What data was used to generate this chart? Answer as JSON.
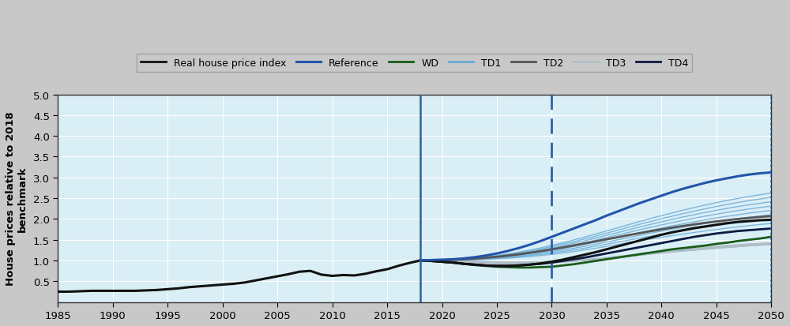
{
  "ylabel": "House prices relative to 2018\nbenchmark",
  "xlim": [
    1985,
    2050
  ],
  "ylim": [
    0,
    5
  ],
  "yticks": [
    0.5,
    1.0,
    1.5,
    2.0,
    2.5,
    3.0,
    3.5,
    4.0,
    4.5,
    5.0
  ],
  "xticks": [
    1985,
    1990,
    1995,
    2000,
    2005,
    2010,
    2015,
    2020,
    2025,
    2030,
    2035,
    2040,
    2045,
    2050
  ],
  "plot_bg_color": "#daeef5",
  "fig_bg_color": "#c8c8c8",
  "vline_solid_x": 2018,
  "vline_dashed_x": 2030,
  "vline_dotted_x": 2050,
  "vline_color": "#3060a0",
  "colors": {
    "real_house": "#111111",
    "reference": "#2255aa",
    "WD": "#1a5c1a",
    "TD1": "#6aacd8",
    "TD2": "#555555",
    "TD3": "#b0bec8",
    "TD4": "#0a1a40"
  },
  "legend_labels": [
    "Real house price index",
    "Reference",
    "WD",
    "TD1",
    "TD2",
    "TD3",
    "TD4"
  ],
  "historical_years": [
    1985,
    1986,
    1987,
    1988,
    1989,
    1990,
    1991,
    1992,
    1993,
    1994,
    1995,
    1996,
    1997,
    1998,
    1999,
    2000,
    2001,
    2002,
    2003,
    2004,
    2005,
    2006,
    2007,
    2008,
    2009,
    2010,
    2011,
    2012,
    2013,
    2014,
    2015,
    2016,
    2017,
    2018
  ],
  "historical_values": [
    0.25,
    0.25,
    0.26,
    0.27,
    0.27,
    0.27,
    0.27,
    0.27,
    0.28,
    0.29,
    0.31,
    0.33,
    0.36,
    0.38,
    0.4,
    0.42,
    0.44,
    0.47,
    0.52,
    0.57,
    0.62,
    0.67,
    0.73,
    0.75,
    0.66,
    0.63,
    0.65,
    0.64,
    0.68,
    0.74,
    0.79,
    0.87,
    0.94,
    1.0
  ],
  "future_years": [
    2018,
    2019,
    2020,
    2021,
    2022,
    2023,
    2024,
    2025,
    2026,
    2027,
    2028,
    2029,
    2030,
    2031,
    2032,
    2033,
    2034,
    2035,
    2036,
    2037,
    2038,
    2039,
    2040,
    2041,
    2042,
    2043,
    2044,
    2045,
    2046,
    2047,
    2048,
    2049,
    2050
  ],
  "reference_values": [
    1.0,
    1.01,
    1.02,
    1.03,
    1.05,
    1.08,
    1.12,
    1.17,
    1.23,
    1.3,
    1.38,
    1.47,
    1.57,
    1.67,
    1.77,
    1.87,
    1.97,
    2.08,
    2.18,
    2.28,
    2.38,
    2.47,
    2.56,
    2.65,
    2.73,
    2.8,
    2.87,
    2.93,
    2.98,
    3.03,
    3.07,
    3.1,
    3.12
  ],
  "real_future_values": [
    1.0,
    0.99,
    0.97,
    0.95,
    0.92,
    0.9,
    0.88,
    0.87,
    0.87,
    0.88,
    0.9,
    0.93,
    0.97,
    1.02,
    1.08,
    1.14,
    1.2,
    1.27,
    1.34,
    1.41,
    1.48,
    1.55,
    1.62,
    1.68,
    1.73,
    1.78,
    1.82,
    1.86,
    1.9,
    1.93,
    1.95,
    1.97,
    1.98
  ],
  "wd_values": [
    1.0,
    0.99,
    0.97,
    0.95,
    0.92,
    0.89,
    0.87,
    0.85,
    0.84,
    0.83,
    0.83,
    0.84,
    0.85,
    0.88,
    0.91,
    0.95,
    0.99,
    1.03,
    1.07,
    1.11,
    1.15,
    1.19,
    1.23,
    1.27,
    1.3,
    1.33,
    1.36,
    1.4,
    1.43,
    1.47,
    1.5,
    1.53,
    1.57
  ],
  "td4_values": [
    1.0,
    0.99,
    0.97,
    0.95,
    0.92,
    0.9,
    0.88,
    0.87,
    0.87,
    0.88,
    0.9,
    0.92,
    0.95,
    0.99,
    1.03,
    1.07,
    1.12,
    1.17,
    1.22,
    1.27,
    1.32,
    1.37,
    1.42,
    1.47,
    1.52,
    1.57,
    1.61,
    1.65,
    1.68,
    1.71,
    1.73,
    1.75,
    1.77
  ],
  "td3_band": [
    [
      1.0,
      0.995,
      0.985,
      0.975,
      0.96,
      0.945,
      0.932,
      0.922,
      0.917,
      0.917,
      0.922,
      0.932,
      0.947,
      0.967,
      0.99,
      1.015,
      1.042,
      1.072,
      1.102,
      1.132,
      1.162,
      1.192,
      1.22,
      1.247,
      1.272,
      1.297,
      1.32,
      1.342,
      1.362,
      1.38,
      1.397,
      1.41,
      1.42
    ],
    [
      1.0,
      0.997,
      0.99,
      0.98,
      0.967,
      0.953,
      0.94,
      0.93,
      0.923,
      0.922,
      0.925,
      0.933,
      0.945,
      0.962,
      0.982,
      1.005,
      1.03,
      1.058,
      1.087,
      1.117,
      1.148,
      1.178,
      1.207,
      1.235,
      1.262,
      1.287,
      1.312,
      1.335,
      1.357,
      1.377,
      1.395,
      1.412,
      1.425
    ],
    [
      1.0,
      0.998,
      0.993,
      0.984,
      0.973,
      0.96,
      0.947,
      0.937,
      0.93,
      0.928,
      0.93,
      0.937,
      0.948,
      0.963,
      0.982,
      1.003,
      1.027,
      1.053,
      1.08,
      1.108,
      1.137,
      1.165,
      1.193,
      1.22,
      1.246,
      1.271,
      1.295,
      1.318,
      1.34,
      1.36,
      1.379,
      1.397,
      1.41
    ],
    [
      1.0,
      0.999,
      0.995,
      0.987,
      0.977,
      0.965,
      0.953,
      0.943,
      0.937,
      0.934,
      0.936,
      0.942,
      0.952,
      0.966,
      0.983,
      1.003,
      1.025,
      1.05,
      1.076,
      1.103,
      1.13,
      1.158,
      1.185,
      1.212,
      1.237,
      1.262,
      1.286,
      1.309,
      1.33,
      1.35,
      1.37,
      1.387,
      1.4
    ],
    [
      1.0,
      1.0,
      0.997,
      0.991,
      0.982,
      0.971,
      0.96,
      0.95,
      0.944,
      0.942,
      0.943,
      0.949,
      0.958,
      0.971,
      0.987,
      1.006,
      1.027,
      1.05,
      1.075,
      1.1,
      1.126,
      1.152,
      1.177,
      1.202,
      1.226,
      1.25,
      1.272,
      1.294,
      1.315,
      1.335,
      1.354,
      1.372,
      1.387
    ],
    [
      1.0,
      1.001,
      0.999,
      0.994,
      0.986,
      0.977,
      0.967,
      0.958,
      0.952,
      0.95,
      0.951,
      0.957,
      0.966,
      0.979,
      0.995,
      1.013,
      1.033,
      1.056,
      1.08,
      1.104,
      1.13,
      1.155,
      1.18,
      1.204,
      1.228,
      1.251,
      1.273,
      1.295,
      1.315,
      1.334,
      1.353,
      1.37,
      1.385
    ],
    [
      1.0,
      1.002,
      1.001,
      0.997,
      0.99,
      0.982,
      0.973,
      0.965,
      0.96,
      0.958,
      0.96,
      0.965,
      0.975,
      0.987,
      1.002,
      1.02,
      1.04,
      1.062,
      1.086,
      1.11,
      1.135,
      1.16,
      1.184,
      1.208,
      1.232,
      1.254,
      1.276,
      1.297,
      1.317,
      1.336,
      1.354,
      1.371,
      1.386
    ],
    [
      1.0,
      1.003,
      1.003,
      1.0,
      0.994,
      0.987,
      0.979,
      0.972,
      0.968,
      0.967,
      0.968,
      0.974,
      0.983,
      0.996,
      1.011,
      1.028,
      1.049,
      1.071,
      1.094,
      1.118,
      1.143,
      1.167,
      1.191,
      1.215,
      1.238,
      1.26,
      1.282,
      1.303,
      1.323,
      1.342,
      1.36,
      1.377,
      1.392
    ]
  ],
  "td1_values": [
    1.0,
    1.001,
    1.003,
    1.007,
    1.013,
    1.02,
    1.03,
    1.042,
    1.057,
    1.075,
    1.096,
    1.12,
    1.148,
    1.18,
    1.215,
    1.254,
    1.295,
    1.339,
    1.383,
    1.428,
    1.472,
    1.516,
    1.558,
    1.599,
    1.638,
    1.675,
    1.712,
    1.747,
    1.78,
    1.811,
    1.84,
    1.867,
    1.892
  ],
  "td2_values": [
    1.0,
    1.003,
    1.008,
    1.017,
    1.03,
    1.046,
    1.066,
    1.09,
    1.118,
    1.15,
    1.186,
    1.225,
    1.268,
    1.314,
    1.362,
    1.411,
    1.461,
    1.511,
    1.561,
    1.61,
    1.658,
    1.705,
    1.75,
    1.793,
    1.833,
    1.871,
    1.907,
    1.94,
    1.971,
    1.999,
    2.025,
    2.049,
    2.07
  ],
  "td1_top": [
    1.0,
    1.005,
    1.013,
    1.025,
    1.042,
    1.063,
    1.09,
    1.122,
    1.16,
    1.203,
    1.251,
    1.305,
    1.363,
    1.427,
    1.494,
    1.564,
    1.637,
    1.712,
    1.787,
    1.862,
    1.937,
    2.01,
    2.08,
    2.148,
    2.213,
    2.275,
    2.335,
    2.392,
    2.446,
    2.496,
    2.542,
    2.584,
    2.623
  ]
}
